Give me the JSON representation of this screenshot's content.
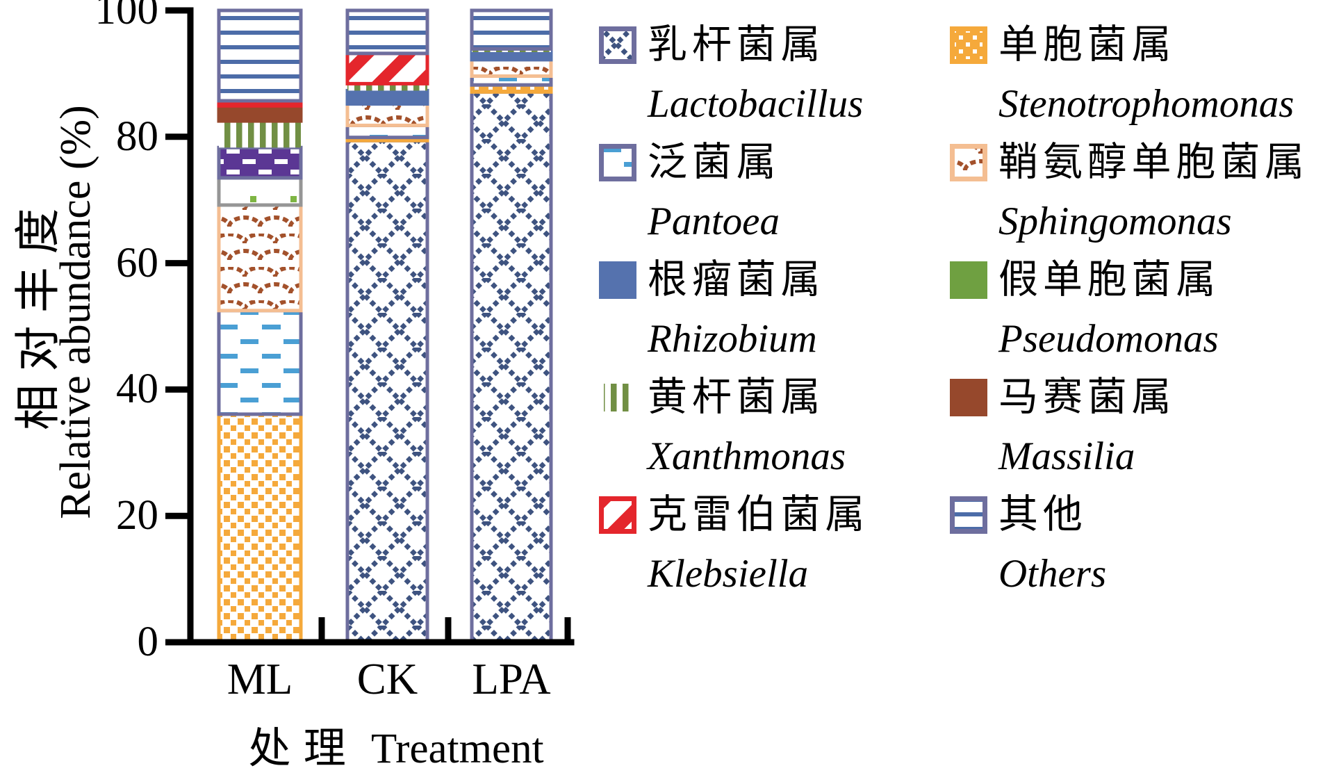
{
  "figure": {
    "y_axis": {
      "title_zh": "相对丰度",
      "title_en": "Relative abundance (%)",
      "ticks": [
        "0",
        "20",
        "40",
        "60",
        "80",
        "100"
      ]
    },
    "x_axis": {
      "title_zh": "处理",
      "title_en": "Treatment",
      "categories": [
        "ML",
        "CK",
        "LPA"
      ]
    }
  },
  "legend": {
    "items": [
      {
        "id": "lactobacillus",
        "label_zh": "乳杆菌属",
        "label_latin": "Lactobacillus",
        "pattern": "crosshatch"
      },
      {
        "id": "pantoea",
        "label_zh": "泛菌属",
        "label_latin": "Pantoea",
        "pattern": "dashBlue"
      },
      {
        "id": "rhizobium",
        "label_zh": "根瘤菌属",
        "label_latin": "Rhizobium",
        "pattern": "solidBlue"
      },
      {
        "id": "xanthmonas",
        "label_zh": "黄杆菌属",
        "label_latin": "Xanthmonas",
        "pattern": "vstripes"
      },
      {
        "id": "klebsiella",
        "label_zh": "克雷伯菌属",
        "label_latin": "Klebsiella",
        "pattern": "diagRed"
      },
      {
        "id": "stenotrophomonas",
        "label_zh": "单胞菌属",
        "label_latin": "Stenotrophomonas",
        "pattern": "dotsWhiteOnYellow"
      },
      {
        "id": "sphingomonas",
        "label_zh": "鞘氨醇单胞菌属",
        "label_latin": "Sphingomonas",
        "pattern": "scallop"
      },
      {
        "id": "pseudomonas",
        "label_zh": "假单胞菌属",
        "label_latin": "Pseudomonas",
        "pattern": "solidGreen"
      },
      {
        "id": "massilia",
        "label_zh": "马赛菌属",
        "label_latin": "Massilia",
        "pattern": "solidBrown"
      },
      {
        "id": "others",
        "label_zh": "其他",
        "label_latin": "Others",
        "pattern": "hlines"
      }
    ]
  },
  "chart_data": {
    "type": "bar",
    "subtype": "stacked-100-percent",
    "categories": [
      "ML",
      "CK",
      "LPA"
    ],
    "xlabel": "处理 Treatment",
    "ylabel": "相对丰度 Relative abundance (%)",
    "ylim": [
      0,
      100
    ],
    "ytick_step": 20,
    "grid": false,
    "legend_position": "right",
    "stack_order": "bottom-to-top as listed",
    "series": [
      {
        "name": "Lactobacillus",
        "name_zh": "乳杆菌属",
        "values": [
          0,
          79.4,
          87.1
        ]
      },
      {
        "name": "Stenotrophomonas",
        "name_zh": "单胞菌属",
        "values": [
          36.1,
          0.5,
          1.1
        ]
      },
      {
        "name": "Pantoea",
        "name_zh": "泛菌属",
        "values": [
          16.4,
          1.9,
          1.4
        ]
      },
      {
        "name": "Sphingomonas",
        "name_zh": "鞘氨醇单胞菌属",
        "values": [
          16.7,
          3.4,
          2.6
        ]
      },
      {
        "name": "Pseudomonas",
        "name_zh": "假单胞菌属",
        "values": [
          4.3,
          0,
          0
        ]
      },
      {
        "name": "Rhizobium",
        "name_zh": "根瘤菌属",
        "values": [
          4.8,
          2.1,
          1.2
        ]
      },
      {
        "name": "Xanthmonas",
        "name_zh": "黄杆菌属",
        "values": [
          4.2,
          1.1,
          0.5
        ]
      },
      {
        "name": "Massilia",
        "name_zh": "马赛菌属",
        "values": [
          2.4,
          0,
          0
        ]
      },
      {
        "name": "Klebsiella",
        "name_zh": "克雷伯菌属",
        "values": [
          0.8,
          4.8,
          0
        ]
      },
      {
        "name": "Others",
        "name_zh": "其他",
        "values": [
          14.3,
          6.8,
          6.1
        ]
      }
    ]
  },
  "colors": {
    "axis": "#000000",
    "crosshatch_blue": "#3E5380",
    "hline_blue": "#4C6CA8",
    "dash_light_blue": "#4A9FD4",
    "yellow": "#F5A93B",
    "scallop_brown": "#A3512B",
    "peach_border": "#F4BE92",
    "solid_blue": "#5572AE",
    "solid_green": "#6FA041",
    "stripe_green": "#718F44",
    "solid_brown": "#96482C",
    "red": "#E4262C",
    "purple_border": "#6E6E9E",
    "purple_fill": "#5B3794",
    "dot_green": "#7EB543",
    "gray_border": "#969696",
    "white": "#FFFFFF"
  }
}
